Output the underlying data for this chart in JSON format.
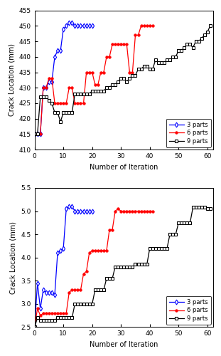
{
  "top": {
    "blue_x": [
      0,
      1,
      2,
      3,
      4,
      5,
      6,
      7,
      8,
      9,
      10,
      11,
      12,
      13,
      14,
      15,
      16,
      17,
      18,
      19,
      20
    ],
    "blue_y": [
      415,
      415,
      415,
      430,
      430,
      432,
      432,
      440,
      442,
      442,
      449,
      450,
      451,
      451,
      450,
      450,
      450,
      450,
      450,
      450,
      450
    ],
    "red_x": [
      0,
      1,
      2,
      3,
      4,
      5,
      6,
      7,
      8,
      9,
      10,
      11,
      12,
      13,
      14,
      15,
      16,
      17,
      18,
      19,
      20,
      21,
      22,
      23,
      24,
      25,
      26,
      27,
      28,
      29,
      30,
      31,
      32,
      33,
      34,
      35,
      36,
      37,
      38,
      39,
      40,
      41
    ],
    "red_y": [
      415,
      415,
      415,
      430,
      430,
      433,
      433,
      425,
      425,
      425,
      425,
      425,
      430,
      430,
      425,
      425,
      425,
      425,
      435,
      435,
      435,
      431,
      431,
      435,
      435,
      440,
      440,
      444,
      444,
      444,
      444,
      444,
      444,
      435,
      435,
      447,
      447,
      450,
      450,
      450,
      450,
      450
    ],
    "black_x": [
      0,
      1,
      2,
      3,
      4,
      5,
      6,
      7,
      8,
      9,
      10,
      11,
      12,
      13,
      14,
      15,
      16,
      17,
      18,
      19,
      20,
      21,
      22,
      23,
      24,
      25,
      26,
      27,
      28,
      29,
      30,
      31,
      32,
      33,
      34,
      35,
      36,
      37,
      38,
      39,
      40,
      41,
      42,
      43,
      44,
      45,
      46,
      47,
      48,
      49,
      50,
      51,
      52,
      53,
      54,
      55,
      56,
      57,
      58,
      59,
      60,
      61
    ],
    "black_y": [
      415,
      415,
      427,
      427,
      427,
      426,
      425,
      422,
      422,
      419,
      422,
      422,
      422,
      422,
      428,
      428,
      428,
      428,
      428,
      428,
      429,
      429,
      429,
      429,
      429,
      430,
      430,
      431,
      431,
      432,
      433,
      433,
      432,
      433,
      434,
      434,
      436,
      436,
      437,
      437,
      436,
      436,
      439,
      438,
      438,
      438,
      439,
      439,
      440,
      440,
      442,
      442,
      443,
      444,
      444,
      443,
      445,
      445,
      446,
      447,
      448,
      450
    ],
    "ylabel": "Crack Location (mm)",
    "xlabel": "Number of Iteration",
    "ylim": [
      410,
      455
    ],
    "yticks": [
      410,
      415,
      420,
      425,
      430,
      435,
      440,
      445,
      450,
      455
    ],
    "xlim": [
      0,
      62
    ],
    "xticks": [
      0,
      10,
      20,
      30,
      40,
      50,
      60
    ]
  },
  "bottom": {
    "blue_x": [
      0,
      1,
      2,
      3,
      4,
      5,
      6,
      7,
      8,
      9,
      10,
      11,
      12,
      13,
      14,
      15,
      16,
      17,
      18,
      19,
      20
    ],
    "blue_y": [
      2.5,
      3.45,
      2.9,
      3.3,
      3.25,
      3.25,
      3.25,
      3.2,
      4.1,
      4.15,
      4.2,
      5.05,
      5.1,
      5.1,
      5.0,
      5.0,
      5.0,
      5.0,
      5.0,
      5.0,
      5.0
    ],
    "red_x": [
      0,
      1,
      2,
      3,
      4,
      5,
      6,
      7,
      8,
      9,
      10,
      11,
      12,
      13,
      14,
      15,
      16,
      17,
      18,
      19,
      20,
      21,
      22,
      23,
      24,
      25,
      26,
      27,
      28,
      29,
      30,
      31,
      32,
      33,
      34,
      35,
      36,
      37,
      38,
      39,
      40,
      41
    ],
    "red_y": [
      2.5,
      2.9,
      2.75,
      2.8,
      2.8,
      2.8,
      2.8,
      2.8,
      2.8,
      2.8,
      2.8,
      2.8,
      3.25,
      3.3,
      3.3,
      3.3,
      3.3,
      3.65,
      3.7,
      4.1,
      4.15,
      4.15,
      4.15,
      4.15,
      4.15,
      4.15,
      4.6,
      4.6,
      5.0,
      5.05,
      5.0,
      5.0,
      5.0,
      5.0,
      5.0,
      5.0,
      5.0,
      5.0,
      5.0,
      5.0,
      5.0,
      5.0
    ],
    "black_x": [
      0,
      1,
      2,
      3,
      4,
      5,
      6,
      7,
      8,
      9,
      10,
      11,
      12,
      13,
      14,
      15,
      16,
      17,
      18,
      19,
      20,
      21,
      22,
      23,
      24,
      25,
      26,
      27,
      28,
      29,
      30,
      31,
      32,
      33,
      34,
      35,
      36,
      37,
      38,
      39,
      40,
      41,
      42,
      43,
      44,
      45,
      46,
      47,
      48,
      49,
      50,
      51,
      52,
      53,
      54,
      55,
      56,
      57,
      58,
      59,
      60,
      61
    ],
    "black_y": [
      2.5,
      2.7,
      2.65,
      2.65,
      2.65,
      2.65,
      2.65,
      2.65,
      2.7,
      2.7,
      2.7,
      2.7,
      2.7,
      2.7,
      3.0,
      3.0,
      3.0,
      3.0,
      3.0,
      3.0,
      3.0,
      3.3,
      3.3,
      3.3,
      3.3,
      3.55,
      3.55,
      3.55,
      3.8,
      3.8,
      3.8,
      3.8,
      3.8,
      3.8,
      3.8,
      3.85,
      3.85,
      3.85,
      3.85,
      3.85,
      4.2,
      4.2,
      4.2,
      4.2,
      4.2,
      4.2,
      4.2,
      4.5,
      4.5,
      4.5,
      4.75,
      4.75,
      4.75,
      4.75,
      4.75,
      5.08,
      5.08,
      5.08,
      5.08,
      5.08,
      5.05,
      5.05
    ],
    "ylabel": "Crack Location (mm)",
    "xlabel": "Number of Iteration",
    "ylim": [
      2.5,
      5.5
    ],
    "yticks": [
      2.5,
      3.0,
      3.5,
      4.0,
      4.5,
      5.0,
      5.5
    ],
    "xlim": [
      0,
      62
    ],
    "xticks": [
      0,
      10,
      20,
      30,
      40,
      50,
      60
    ]
  },
  "blue_color": "#0000FF",
  "red_color": "#FF0000",
  "black_color": "#000000",
  "legend_labels": [
    "3 parts",
    "6 parts",
    "9 parts"
  ],
  "bg_color": "#FFFFFF"
}
